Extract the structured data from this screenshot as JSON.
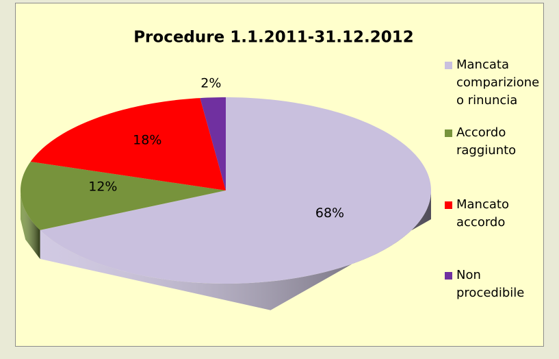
{
  "chart_data": {
    "type": "pie",
    "title": "Procedure 1.1.2011-31.12.2012",
    "categories": [
      "Mancata comparizione o rinuncia",
      "Accordo raggiunto",
      "Mancato accordo",
      "Non procedibile"
    ],
    "values": [
      68,
      12,
      18,
      2
    ],
    "value_labels": [
      "68%",
      "12%",
      "18%",
      "2%"
    ],
    "colors": [
      "#c9c0de",
      "#77933c",
      "#ff0000",
      "#7030a0"
    ],
    "legend": "right"
  }
}
